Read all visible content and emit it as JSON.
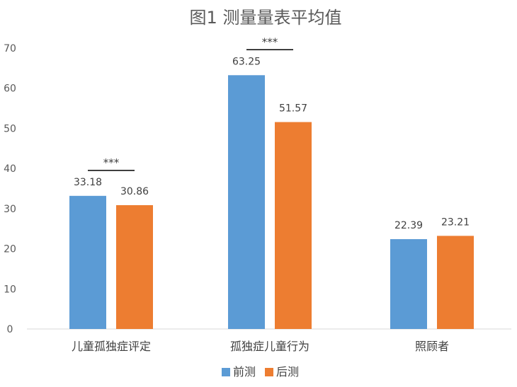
{
  "chart_data": {
    "type": "bar",
    "title": "图1 测量量表平均值",
    "categories": [
      "儿童孤独症评定",
      "孤独症儿童行为",
      "照顾者"
    ],
    "series": [
      {
        "name": "前测",
        "color": "#5B9BD5",
        "values": [
          33.18,
          63.25,
          22.39
        ]
      },
      {
        "name": "后测",
        "color": "#ED7D31",
        "values": [
          30.86,
          51.57,
          23.21
        ]
      }
    ],
    "ylim": [
      0,
      70
    ],
    "yticks": [
      0,
      10,
      20,
      30,
      40,
      50,
      60,
      70
    ],
    "data_labels": [
      "33.18",
      "30.86",
      "63.25",
      "51.57",
      "22.39",
      "23.21"
    ],
    "significance": [
      {
        "category": "儿童孤独症评定",
        "label": "***"
      },
      {
        "category": "孤独症儿童行为",
        "label": "***"
      }
    ],
    "legend_position": "bottom",
    "grid": false
  }
}
